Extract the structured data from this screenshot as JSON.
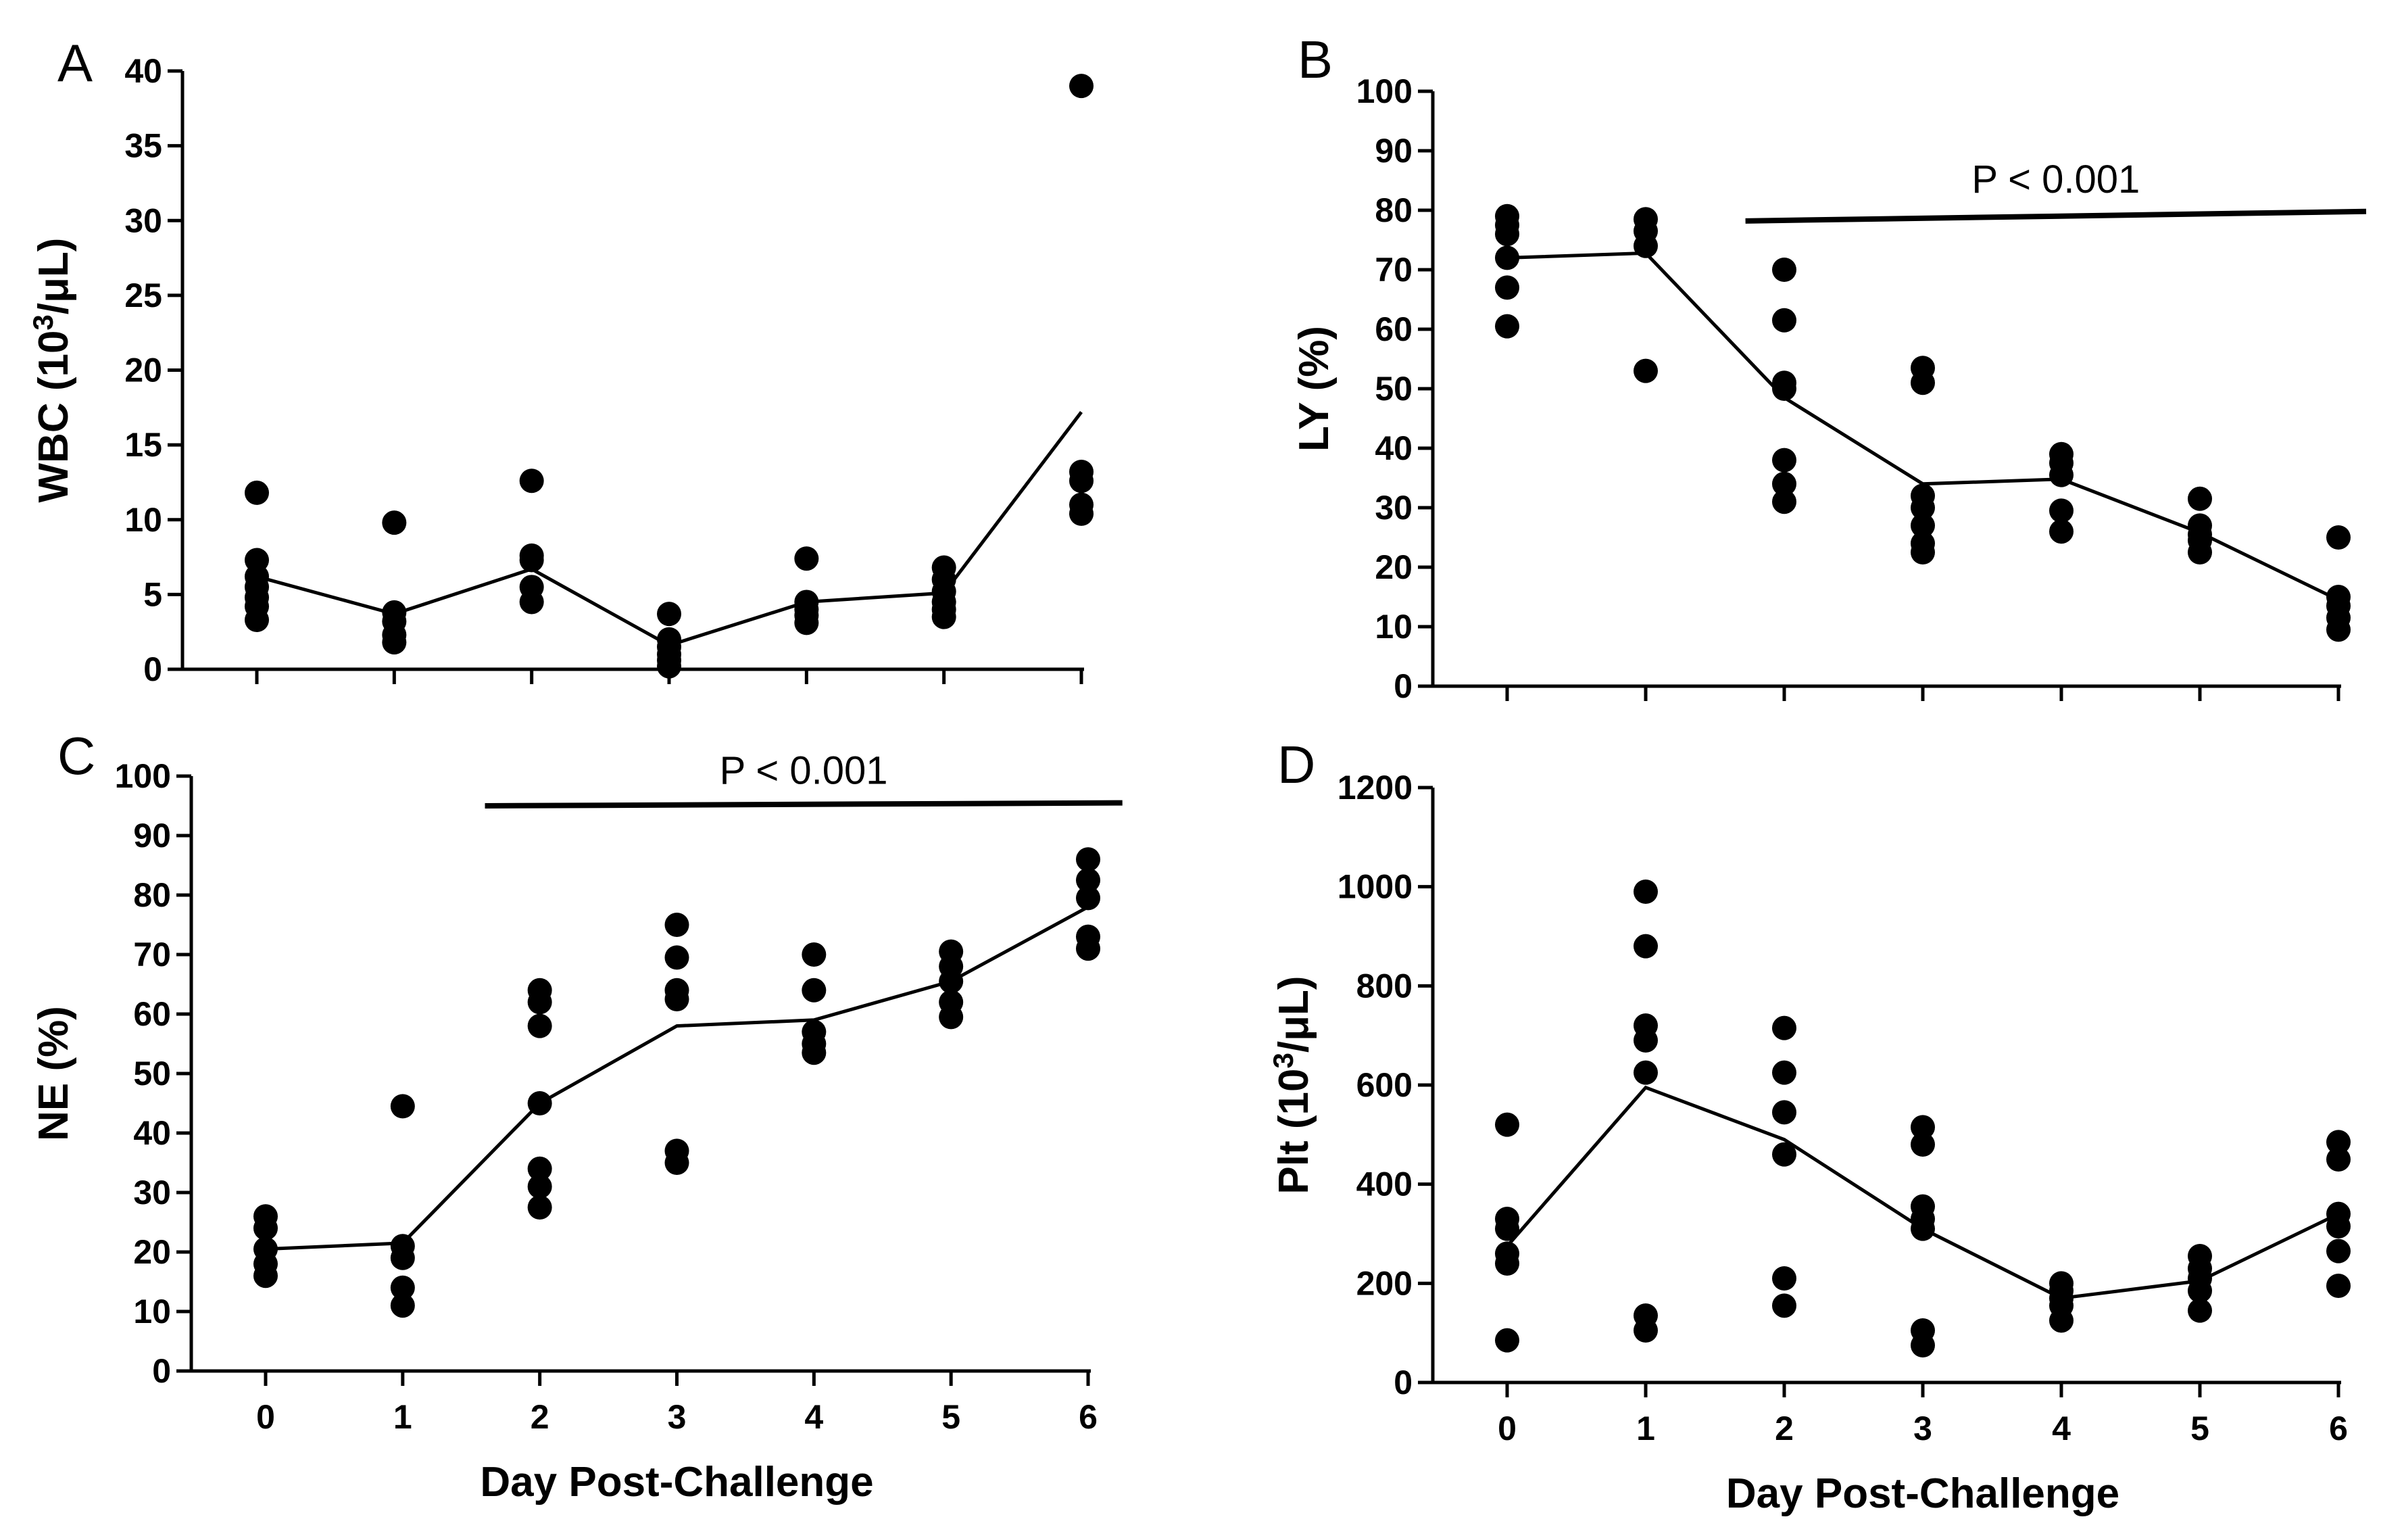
{
  "chart_data": [
    {
      "id": "A",
      "panel_letter": "A",
      "type": "scatter",
      "ylabel": "WBC (10",
      "ylabel_sup": "3",
      "ylabel_tail": "/μL)",
      "xlabel": "",
      "ylim": [
        0,
        40
      ],
      "yticks": [
        0,
        5,
        10,
        15,
        20,
        25,
        30,
        35,
        40
      ],
      "x": [
        0,
        1,
        2,
        3,
        4,
        5,
        6
      ],
      "show_x_tick_labels": false,
      "points": [
        [
          11.8,
          7.3,
          6.2,
          5.5,
          4.8,
          4.2,
          3.3
        ],
        [
          9.8,
          3.8,
          3.2,
          2.3,
          1.8
        ],
        [
          12.6,
          7.6,
          7.3,
          5.5,
          4.5
        ],
        [
          3.7,
          2.0,
          1.5,
          1.0,
          0.6,
          0.2
        ],
        [
          7.4,
          4.5,
          4.0,
          3.6,
          3.1
        ],
        [
          6.8,
          6.0,
          5.2,
          4.5,
          4.0,
          3.5
        ],
        [
          39.0,
          13.2,
          12.6,
          11.0,
          10.4
        ]
      ],
      "mean_line": [
        6.2,
        3.7,
        6.7,
        1.6,
        4.5,
        5.1,
        17.2
      ],
      "significance": null
    },
    {
      "id": "B",
      "panel_letter": "B",
      "type": "scatter",
      "ylabel": "LY (%)",
      "xlabel": "",
      "ylim": [
        0,
        100
      ],
      "yticks": [
        0,
        10,
        20,
        30,
        40,
        50,
        60,
        70,
        80,
        90,
        100
      ],
      "x": [
        0,
        1,
        2,
        3,
        4,
        5,
        6
      ],
      "show_x_tick_labels": false,
      "points": [
        [
          79.0,
          77.5,
          76.0,
          72.0,
          67.0,
          60.5
        ],
        [
          78.5,
          76.5,
          74.0,
          53.0
        ],
        [
          70.0,
          61.5,
          51.0,
          50.0,
          38.0,
          34.0,
          31.0
        ],
        [
          53.5,
          51.0,
          32.0,
          30.0,
          27.0,
          24.0,
          22.5
        ],
        [
          39.0,
          37.5,
          35.5,
          29.5,
          26.0
        ],
        [
          31.5,
          27.0,
          25.5,
          24.5,
          22.5
        ],
        [
          25.0,
          15.0,
          13.5,
          11.5,
          9.5
        ]
      ],
      "mean_line": [
        72.0,
        72.8,
        48.5,
        34.0,
        34.8,
        25.8,
        14.5
      ],
      "significance": {
        "label": "P < 0.001",
        "x_start": 1.72,
        "x_end": 6.2,
        "y_start": 78.2,
        "y_end": 79.8
      }
    },
    {
      "id": "C",
      "panel_letter": "C",
      "type": "scatter",
      "ylabel": "NE (%)",
      "xlabel": "Day Post-Challenge",
      "ylim": [
        0,
        100
      ],
      "yticks": [
        0,
        10,
        20,
        30,
        40,
        50,
        60,
        70,
        80,
        90,
        100
      ],
      "x": [
        0,
        1,
        2,
        3,
        4,
        5,
        6
      ],
      "show_x_tick_labels": true,
      "points": [
        [
          26.0,
          24.0,
          20.5,
          18.0,
          16.0
        ],
        [
          44.5,
          21.0,
          19.0,
          14.0,
          11.0
        ],
        [
          64.0,
          62.0,
          58.0,
          45.0,
          34.0,
          31.0,
          27.5
        ],
        [
          75.0,
          69.5,
          64.0,
          62.5,
          37.0,
          35.0
        ],
        [
          70.0,
          64.0,
          57.0,
          55.0,
          53.5
        ],
        [
          70.5,
          68.0,
          65.5,
          62.0,
          59.5
        ],
        [
          86.0,
          82.5,
          79.5,
          73.0,
          71.0
        ]
      ],
      "mean_line": [
        20.5,
        21.5,
        45.0,
        58.0,
        59.0,
        65.5,
        78.0
      ],
      "significance": {
        "label": "P < 0.001",
        "x_start": 1.6,
        "x_end": 6.25,
        "y_start": 95.0,
        "y_end": 95.5
      }
    },
    {
      "id": "D",
      "panel_letter": "D",
      "type": "scatter",
      "ylabel": "Plt (10",
      "ylabel_sup": "3",
      "ylabel_tail": "/μL)",
      "xlabel": "Day Post-Challenge",
      "ylim": [
        0,
        1200
      ],
      "yticks": [
        0,
        200,
        400,
        600,
        800,
        1000,
        1200
      ],
      "x": [
        0,
        1,
        2,
        3,
        4,
        5,
        6
      ],
      "show_x_tick_labels": true,
      "points": [
        [
          520,
          330,
          310,
          260,
          240,
          85
        ],
        [
          990,
          880,
          720,
          690,
          625,
          135,
          105
        ],
        [
          715,
          625,
          545,
          460,
          210,
          155
        ],
        [
          515,
          480,
          355,
          330,
          310,
          105,
          75
        ],
        [
          200,
          185,
          170,
          155,
          125
        ],
        [
          255,
          230,
          210,
          185,
          145
        ],
        [
          485,
          450,
          340,
          315,
          265,
          195
        ]
      ],
      "mean_line": [
        275,
        595,
        490,
        310,
        170,
        205,
        340
      ],
      "significance": null
    }
  ]
}
